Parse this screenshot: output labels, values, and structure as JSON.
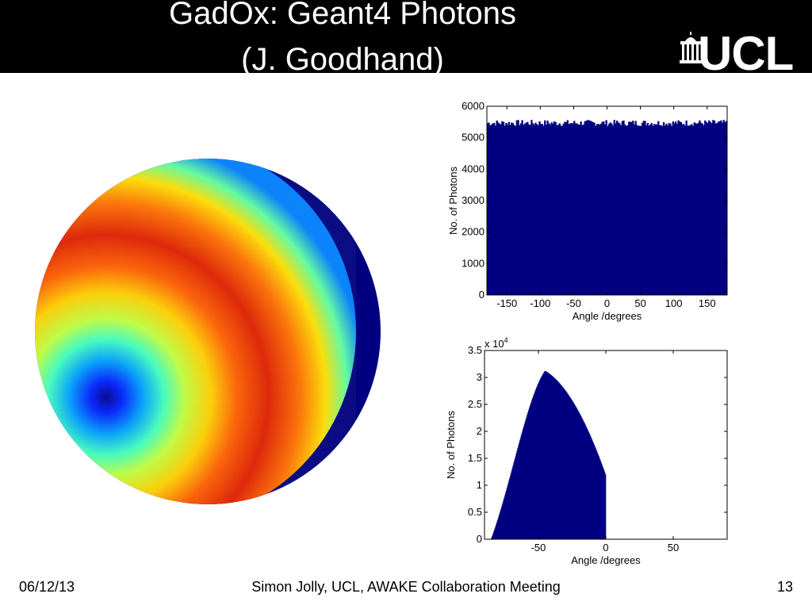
{
  "slide": {
    "title_line1": "GadOx: Geant4 Photons",
    "title_line2": "(J. Goodhand)",
    "logo_text": "UCL"
  },
  "footer": {
    "date": "06/12/13",
    "center": "Simon Jolly, UCL, AWAKE Collaboration Meeting",
    "page": "13"
  },
  "chart_data": [
    {
      "type": "bar",
      "title": "",
      "xlabel": "Angle /degrees",
      "ylabel": "No. of Photons",
      "xlim": [
        -180,
        180
      ],
      "ylim": [
        0,
        6000
      ],
      "xticks": [
        -150,
        -100,
        -50,
        0,
        50,
        100,
        150
      ],
      "yticks": [
        0,
        1000,
        2000,
        3000,
        4000,
        5000,
        6000
      ],
      "bin_range": [
        -180,
        180
      ],
      "mean_value": 5430,
      "noise_band": [
        5360,
        5560
      ],
      "color": "#000080"
    },
    {
      "type": "bar",
      "title": "",
      "xlabel": "Angle /degrees",
      "ylabel": "No. of Photons",
      "y_multiplier": "x 10^4",
      "xlim": [
        -90,
        90
      ],
      "ylim": [
        0,
        3.5
      ],
      "xticks": [
        -50,
        0,
        50
      ],
      "yticks": [
        0,
        0.5,
        1,
        1.5,
        2,
        2.5,
        3,
        3.5
      ],
      "bin_range": [
        -90,
        0
      ],
      "peak_angle": -45,
      "peak_value": 3.12,
      "value_at_0": 1.18,
      "color": "#000080"
    },
    {
      "type": "heatmap",
      "title": "",
      "colormap": "jet",
      "description_color_low": "#00008f",
      "description_color_high": "#a00000"
    }
  ]
}
